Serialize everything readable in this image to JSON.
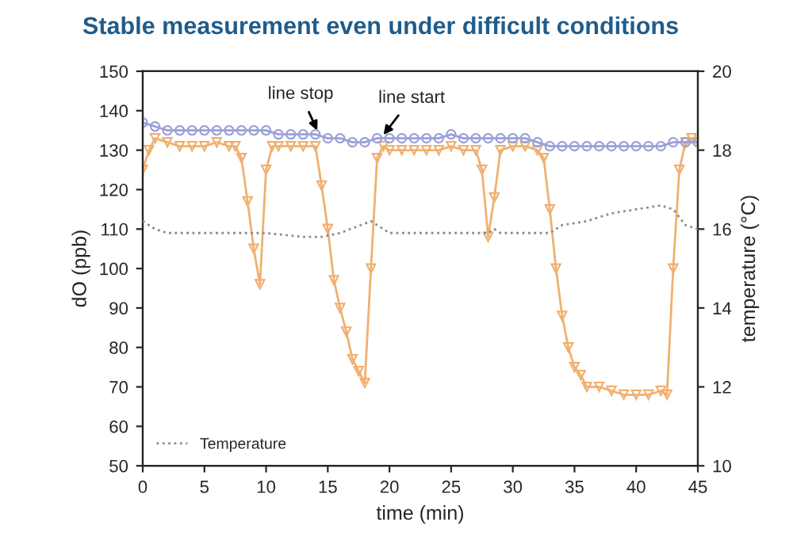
{
  "chart_data": {
    "type": "line",
    "title": "Stable measurement even under difficult conditions",
    "xlabel": "time (min)",
    "ylabel": "dO (ppb)",
    "y2label": "temperature (°C)",
    "xlim": [
      0,
      45
    ],
    "xticks": [
      0,
      5,
      10,
      15,
      20,
      25,
      30,
      35,
      40,
      45
    ],
    "ylim": [
      50,
      150
    ],
    "yticks": [
      50,
      60,
      70,
      80,
      90,
      100,
      110,
      120,
      130,
      140,
      150
    ],
    "y2lim": [
      10,
      20
    ],
    "y2ticks": [
      10,
      12,
      14,
      16,
      18,
      20
    ],
    "legend": "bottom left",
    "grid": false,
    "annotations": [
      {
        "text": "line stop",
        "x": 14.3,
        "y": 134
      },
      {
        "text": "line start",
        "x": 19.3,
        "y": 133
      }
    ],
    "series": [
      {
        "color": "#9aa0d8",
        "marker": "circle",
        "line_style": "solid",
        "x": [
          0,
          1,
          2,
          3,
          4,
          5,
          6,
          7,
          8,
          9,
          10,
          11,
          12,
          13,
          14,
          15,
          16,
          17,
          18,
          19,
          20,
          21,
          22,
          23,
          24,
          25,
          26,
          27,
          28,
          29,
          30,
          31,
          32,
          33,
          34,
          35,
          36,
          37,
          38,
          39,
          40,
          41,
          42,
          43,
          44,
          45
        ],
        "values": [
          137,
          136,
          135,
          135,
          135,
          135,
          135,
          135,
          135,
          135,
          135,
          134,
          134,
          134,
          134,
          133,
          133,
          132,
          132,
          133,
          133,
          133,
          133,
          133,
          133,
          134,
          133,
          133,
          133,
          133,
          133,
          133,
          132,
          131,
          131,
          131,
          131,
          131,
          131,
          131,
          131,
          131,
          131,
          132,
          132,
          132
        ]
      },
      {
        "color": "#f0b070",
        "marker": "triangle",
        "line_style": "solid",
        "x": [
          0,
          0.5,
          1,
          2,
          3,
          4,
          5,
          6,
          7,
          7.5,
          8,
          8.5,
          9,
          9.5,
          10,
          10.5,
          11,
          12,
          13,
          14,
          14.5,
          15,
          15.5,
          16,
          16.5,
          17,
          17.5,
          18,
          18.5,
          19,
          19.5,
          20,
          21,
          22,
          23,
          24,
          25,
          26,
          27,
          27.5,
          28,
          28.5,
          29,
          30,
          31,
          32,
          32.5,
          33,
          33.5,
          34,
          34.5,
          35,
          35.5,
          36,
          37,
          38,
          39,
          40,
          41,
          42,
          42.5,
          43,
          43.5,
          44,
          44.5,
          45
        ],
        "values": [
          125,
          130,
          133,
          132,
          131,
          131,
          131,
          132,
          131,
          131,
          128,
          117,
          105,
          96,
          125,
          131,
          131,
          131,
          131,
          131,
          121,
          110,
          97,
          90,
          84,
          77,
          74,
          71,
          100,
          128,
          131,
          130,
          130,
          130,
          130,
          130,
          131,
          130,
          130,
          125,
          108,
          118,
          130,
          131,
          131,
          130,
          128,
          115,
          100,
          88,
          80,
          75,
          73,
          70,
          70,
          69,
          68,
          68,
          68,
          69,
          68,
          100,
          125,
          132,
          133,
          132
        ]
      },
      {
        "name": "Temperature",
        "color": "#8a8a8a",
        "marker": "none",
        "line_style": "dotted",
        "axis": "y2",
        "x": [
          0,
          1,
          2,
          5,
          10,
          13,
          14.5,
          16,
          18.5,
          20,
          25,
          28,
          28.5,
          29,
          33,
          34,
          36,
          38,
          40,
          42,
          43,
          44,
          45
        ],
        "values": [
          16.2,
          16.0,
          15.9,
          15.9,
          15.9,
          15.8,
          15.8,
          15.9,
          16.2,
          15.9,
          15.9,
          15.9,
          16.0,
          15.9,
          15.9,
          16.1,
          16.2,
          16.4,
          16.5,
          16.6,
          16.5,
          16.1,
          16.0
        ]
      }
    ]
  }
}
